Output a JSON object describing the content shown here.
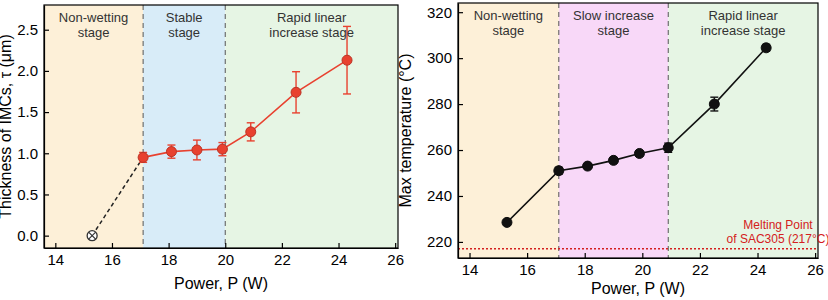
{
  "chart_data": [
    {
      "type": "line",
      "x_label": "Power, P (W)",
      "y_label": "Thickness of IMCs, τ (μm)",
      "xlim": [
        13.6,
        26.1
      ],
      "xticks": [
        14,
        16,
        18,
        20,
        22,
        24,
        26
      ],
      "ylim": [
        -0.15,
        2.8
      ],
      "yticks": [
        {
          "value": 0,
          "label": "0.0"
        },
        {
          "value": 0.5,
          "label": "0.5"
        },
        {
          "value": 1,
          "label": "1.0"
        },
        {
          "value": 1.5,
          "label": "1.5"
        },
        {
          "value": 2,
          "label": "2.0"
        },
        {
          "value": 2.5,
          "label": "2.5"
        }
      ],
      "grid": false,
      "regions": [
        {
          "label": [
            "Non-wetting",
            "stage"
          ],
          "start": 13.6,
          "end": 17.1,
          "color": "#fdf0d8"
        },
        {
          "label": [
            "Stable",
            "stage"
          ],
          "start": 17.1,
          "end": 20.0,
          "color": "#d8ecf8"
        },
        {
          "label": [
            "Rapid linear",
            "increase stage"
          ],
          "start": 20.0,
          "end": 26.1,
          "color": "#e6f5e4"
        }
      ],
      "series": [
        {
          "x": [
            15.3
          ],
          "values": [
            0
          ],
          "color": "#333333",
          "marker": "crossed-circle",
          "line_style": "dashed"
        },
        {
          "x": [
            17.1,
            18.1,
            19.0,
            19.9,
            20.9,
            22.5,
            24.3
          ],
          "values": [
            0.95,
            1.02,
            1.04,
            1.05,
            1.26,
            1.74,
            2.13
          ],
          "errors": [
            0.06,
            0.08,
            0.12,
            0.08,
            0.11,
            0.25,
            0.41
          ],
          "color": "#e8412f",
          "marker": "circle",
          "line_style": "solid"
        }
      ]
    },
    {
      "type": "line",
      "x_label": "Power, P (W)",
      "y_label": "Max temperature (°C)",
      "xlim": [
        13.6,
        26.1
      ],
      "xticks": [
        14,
        16,
        18,
        20,
        22,
        24,
        26
      ],
      "ylim": [
        213,
        324
      ],
      "yticks": [
        220,
        240,
        260,
        280,
        300,
        320
      ],
      "grid": false,
      "regions": [
        {
          "label": [
            "Non-wetting",
            "stage"
          ],
          "start": 13.6,
          "end": 17.1,
          "color": "#fdf0d8"
        },
        {
          "label": [
            "Slow increase",
            "stage"
          ],
          "start": 17.1,
          "end": 20.9,
          "color": "#f8d8f8"
        },
        {
          "label": [
            "Rapid linear",
            "increase stage"
          ],
          "start": 20.9,
          "end": 26.1,
          "color": "#e6f5e4"
        }
      ],
      "annotations": [
        {
          "text": [
            "Melting Point",
            "of SAC305 (217°C)"
          ],
          "y": 217,
          "color": "#d42020",
          "line_style": "dotted"
        }
      ],
      "series": [
        {
          "x": [
            15.3,
            17.1,
            18.1,
            19.0,
            19.9,
            20.9,
            22.5,
            24.3
          ],
          "values": [
            228.5,
            251,
            253,
            255.5,
            258.5,
            261,
            280,
            304.5
          ],
          "errors": [
            1,
            1.5,
            1,
            1,
            1,
            2,
            3,
            1.5
          ],
          "color": "#111111",
          "marker": "circle",
          "line_style": "solid"
        }
      ]
    }
  ]
}
